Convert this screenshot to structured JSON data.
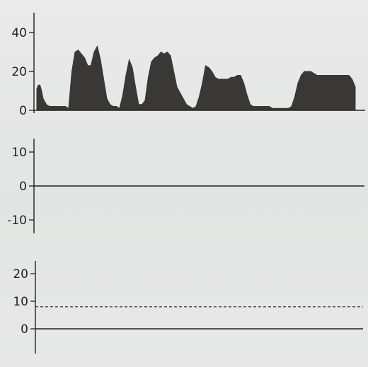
{
  "chart_data": [
    {
      "type": "area",
      "x": [
        0,
        0.5,
        1,
        1.5,
        2,
        3,
        4,
        5,
        6,
        7,
        8,
        9,
        10,
        11,
        12,
        13,
        14,
        15,
        16,
        17,
        18,
        19,
        20,
        21,
        22,
        23,
        24,
        25,
        26,
        27,
        28,
        29,
        30,
        31,
        32,
        33,
        34,
        35,
        36,
        37,
        38,
        39,
        40,
        41,
        42,
        43,
        44,
        45,
        46,
        47,
        48,
        49,
        50,
        51,
        52,
        53,
        54,
        55,
        56,
        57,
        58,
        59,
        60,
        61,
        62,
        63,
        64,
        65,
        66,
        67,
        68,
        69,
        70,
        71,
        72,
        73,
        74,
        75,
        76,
        77,
        78,
        79,
        80,
        81,
        82,
        83,
        84,
        85,
        86,
        87,
        88,
        89,
        90,
        91,
        92,
        93,
        94,
        95,
        96,
        97,
        98,
        99,
        100
      ],
      "values": [
        11,
        13,
        13,
        10,
        6,
        3,
        2,
        2,
        2,
        2,
        2,
        2,
        1,
        20,
        30,
        31,
        29,
        27,
        23,
        23,
        30,
        33,
        26,
        16,
        6,
        3,
        2,
        2,
        1,
        8,
        18,
        26,
        22,
        12,
        3,
        3,
        5,
        17,
        25,
        27,
        28,
        30,
        29,
        30,
        28,
        20,
        12,
        9,
        6,
        3,
        2,
        1,
        2,
        7,
        14,
        23,
        22,
        20,
        17,
        16,
        16,
        16,
        16,
        17,
        17,
        18,
        18,
        14,
        8,
        3,
        2,
        2,
        2,
        2,
        2,
        2,
        1,
        1,
        1,
        1,
        1,
        1,
        2,
        7,
        14,
        18,
        20,
        20,
        20,
        19,
        18,
        18,
        18,
        18,
        18,
        18,
        18,
        18,
        18,
        18,
        18,
        16,
        12
      ],
      "ylim": [
        0,
        50
      ],
      "yticks": [
        0,
        20,
        40
      ],
      "ytick_labels": [
        "0",
        "20",
        "40"
      ],
      "fill_color": "#3a3836"
    },
    {
      "type": "line",
      "x": [
        0,
        100
      ],
      "values": [
        0,
        0
      ],
      "ylim": [
        -13,
        16
      ],
      "yticks": [
        -10,
        0,
        10
      ],
      "ytick_labels": [
        "-10",
        "0",
        "10"
      ],
      "line_color": "#222222"
    },
    {
      "type": "line",
      "x": [
        0,
        100
      ],
      "values": [
        0,
        0
      ],
      "reference_line": 8,
      "reference_style": "dashed",
      "ylim": [
        -7,
        24
      ],
      "yticks": [
        0,
        10,
        20
      ],
      "ytick_labels": [
        "0",
        "10",
        "20"
      ],
      "line_color": "#222222"
    }
  ]
}
